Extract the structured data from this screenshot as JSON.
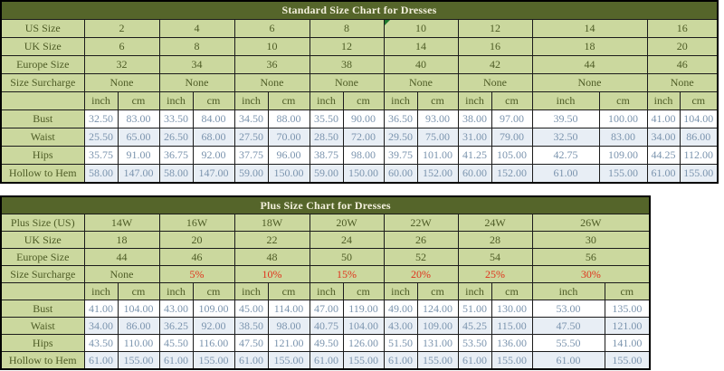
{
  "colors": {
    "header_background": "#55652a",
    "title_text": "#f3f0dd",
    "cell_green": "#cbd89e",
    "label_text": "#4e5c26",
    "number_text": "#7b94ae",
    "alt_row_background": "#e8eef5",
    "surcharge_red": "#e0331c",
    "corner_marker_green": "#1d7a2e",
    "border": "#1b1b1b"
  },
  "chart_data": [
    {
      "type": "table",
      "title": "Standard Size Chart for Dresses",
      "header_rows": [
        {
          "label": "US Size",
          "values": [
            "2",
            "4",
            "6",
            "8",
            "10",
            "12",
            "14",
            "16"
          ]
        },
        {
          "label": "UK Size",
          "values": [
            "6",
            "8",
            "10",
            "12",
            "14",
            "16",
            "18",
            "20"
          ]
        },
        {
          "label": "Europe Size",
          "values": [
            "32",
            "34",
            "36",
            "38",
            "40",
            "42",
            "44",
            "46"
          ]
        },
        {
          "label": "Size Surcharge",
          "values": [
            "None",
            "None",
            "None",
            "None",
            "None",
            "None",
            "None",
            "None"
          ]
        }
      ],
      "surcharge_row_index": 3,
      "marker_cell": {
        "row": 0,
        "col": 4
      },
      "unit_labels": [
        "inch",
        "cm"
      ],
      "measure_rows": [
        {
          "label": "Bust",
          "values": [
            [
              "32.50",
              "83.00"
            ],
            [
              "33.50",
              "84.00"
            ],
            [
              "34.50",
              "88.00"
            ],
            [
              "35.50",
              "90.00"
            ],
            [
              "36.50",
              "93.00"
            ],
            [
              "38.00",
              "97.00"
            ],
            [
              "39.50",
              "100.00"
            ],
            [
              "41.00",
              "104.00"
            ]
          ]
        },
        {
          "label": "Waist",
          "values": [
            [
              "25.50",
              "65.00"
            ],
            [
              "26.50",
              "68.00"
            ],
            [
              "27.50",
              "70.00"
            ],
            [
              "28.50",
              "72.00"
            ],
            [
              "29.50",
              "75.00"
            ],
            [
              "31.00",
              "79.00"
            ],
            [
              "32.50",
              "83.00"
            ],
            [
              "34.00",
              "86.00"
            ]
          ]
        },
        {
          "label": "Hips",
          "values": [
            [
              "35.75",
              "91.00"
            ],
            [
              "36.75",
              "92.00"
            ],
            [
              "37.75",
              "96.00"
            ],
            [
              "38.75",
              "98.00"
            ],
            [
              "39.75",
              "101.00"
            ],
            [
              "41.25",
              "105.00"
            ],
            [
              "42.75",
              "109.00"
            ],
            [
              "44.25",
              "112.00"
            ]
          ]
        },
        {
          "label": "Hollow to Hem",
          "values": [
            [
              "58.00",
              "147.00"
            ],
            [
              "58.00",
              "147.00"
            ],
            [
              "59.00",
              "150.00"
            ],
            [
              "59.00",
              "150.00"
            ],
            [
              "60.00",
              "152.00"
            ],
            [
              "60.00",
              "152.00"
            ],
            [
              "61.00",
              "155.00"
            ],
            [
              "61.00",
              "155.00"
            ]
          ]
        }
      ]
    },
    {
      "type": "table",
      "title": "Plus Size Chart for Dresses",
      "header_rows": [
        {
          "label": "Plus Size (US)",
          "values": [
            "14W",
            "16W",
            "18W",
            "20W",
            "22W",
            "24W",
            "26W"
          ]
        },
        {
          "label": "UK Size",
          "values": [
            "18",
            "20",
            "22",
            "24",
            "26",
            "28",
            "30"
          ]
        },
        {
          "label": "Europe Size",
          "values": [
            "44",
            "46",
            "48",
            "50",
            "52",
            "54",
            "56"
          ]
        },
        {
          "label": "Size Surcharge",
          "values": [
            "None",
            "5%",
            "10%",
            "15%",
            "20%",
            "25%",
            "30%"
          ]
        }
      ],
      "surcharge_row_index": 3,
      "marker_cell": null,
      "unit_labels": [
        "inch",
        "cm"
      ],
      "measure_rows": [
        {
          "label": "Bust",
          "values": [
            [
              "41.00",
              "104.00"
            ],
            [
              "43.00",
              "109.00"
            ],
            [
              "45.00",
              "114.00"
            ],
            [
              "47.00",
              "119.00"
            ],
            [
              "49.00",
              "124.00"
            ],
            [
              "51.00",
              "130.00"
            ],
            [
              "53.00",
              "135.00"
            ]
          ]
        },
        {
          "label": "Waist",
          "values": [
            [
              "34.00",
              "86.00"
            ],
            [
              "36.25",
              "92.00"
            ],
            [
              "38.50",
              "98.00"
            ],
            [
              "40.75",
              "104.00"
            ],
            [
              "43.00",
              "109.00"
            ],
            [
              "45.25",
              "115.00"
            ],
            [
              "47.50",
              "121.00"
            ]
          ]
        },
        {
          "label": "Hips",
          "values": [
            [
              "43.50",
              "110.00"
            ],
            [
              "45.50",
              "116.00"
            ],
            [
              "47.50",
              "121.00"
            ],
            [
              "49.50",
              "126.00"
            ],
            [
              "51.50",
              "131.00"
            ],
            [
              "53.50",
              "136.00"
            ],
            [
              "55.50",
              "141.00"
            ]
          ]
        },
        {
          "label": "Hollow to Hem",
          "values": [
            [
              "61.00",
              "155.00"
            ],
            [
              "61.00",
              "155.00"
            ],
            [
              "61.00",
              "155.00"
            ],
            [
              "61.00",
              "155.00"
            ],
            [
              "61.00",
              "155.00"
            ],
            [
              "61.00",
              "155.00"
            ],
            [
              "61.00",
              "155.00"
            ]
          ]
        }
      ]
    }
  ]
}
